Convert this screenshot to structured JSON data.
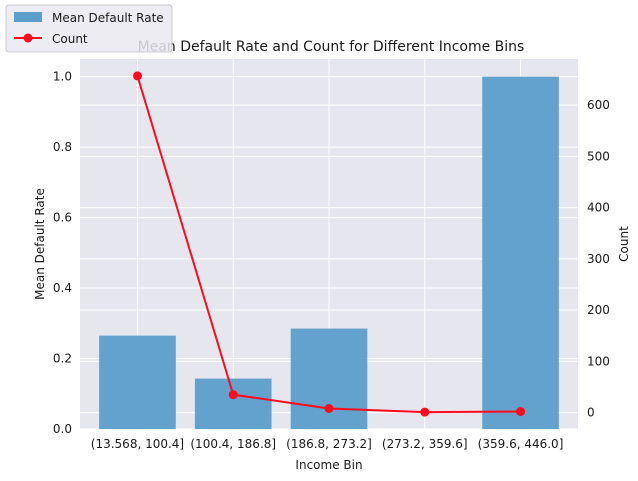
{
  "chart_data": {
    "type": "bar+line",
    "title": "Mean Default Rate and Count for Different Income Bins",
    "xlabel": "Income Bin",
    "ylabel": "Mean Default Rate",
    "y2label": "Count",
    "categories": [
      "(13.568, 100.4]",
      "(100.4, 186.8]",
      "(186.8, 273.2]",
      "(273.2, 359.6]",
      "(359.6, 446.0]"
    ],
    "series": [
      {
        "name": "Mean Default Rate",
        "type": "bar",
        "axis": "left",
        "color": "#5b9ec9",
        "values": [
          0.265,
          0.143,
          0.285,
          0.0,
          1.0
        ]
      },
      {
        "name": "Count",
        "type": "line",
        "axis": "right",
        "color": "#ff0a1e",
        "marker": "circle",
        "values": [
          657,
          35,
          8,
          1,
          2
        ]
      }
    ],
    "ylim": [
      0,
      1.05
    ],
    "y2lim": [
      -32,
      690
    ],
    "yticks": [
      "0.0",
      "0.2",
      "0.4",
      "0.6",
      "0.8",
      "1.0"
    ],
    "y2ticks": [
      "0",
      "100",
      "200",
      "300",
      "400",
      "500",
      "600"
    ],
    "grid": true,
    "background": "#e6e6ef",
    "legend": "upper-left-outside"
  }
}
